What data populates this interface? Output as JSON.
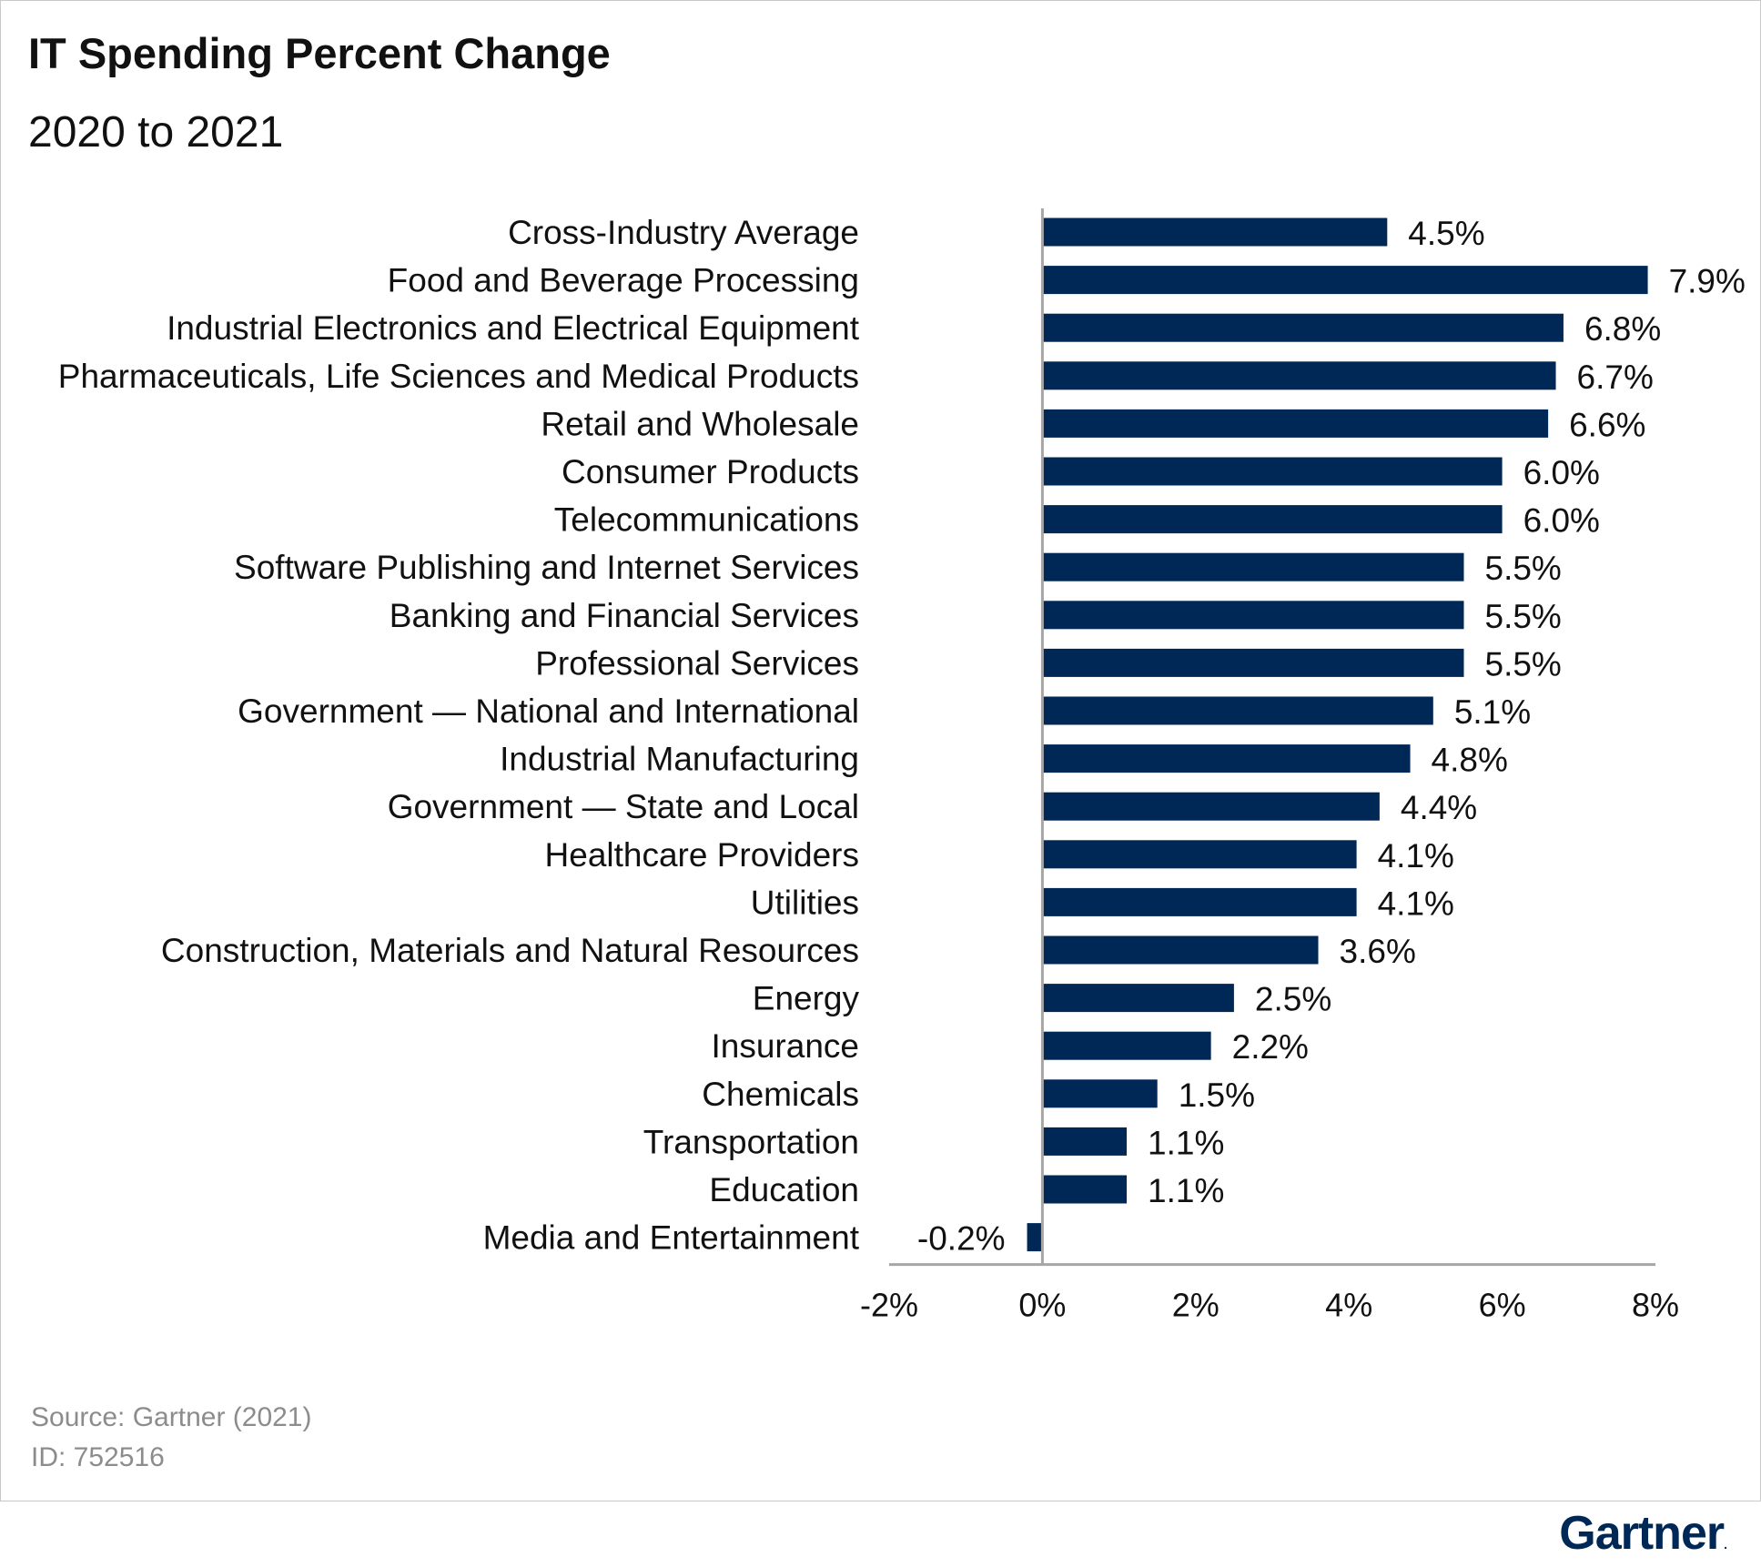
{
  "chart_data": {
    "type": "bar",
    "orientation": "horizontal",
    "title": "IT Spending Percent Change",
    "subtitle": "2020 to 2021",
    "categories": [
      "Cross-Industry Average",
      "Food and Beverage Processing",
      "Industrial Electronics and Electrical Equipment",
      "Pharmaceuticals, Life Sciences and Medical Products",
      "Retail and Wholesale",
      "Consumer Products",
      "Telecommunications",
      "Software Publishing and Internet Services",
      "Banking and Financial Services",
      "Professional Services",
      "Government — National and International",
      "Industrial Manufacturing",
      "Government — State and Local",
      "Healthcare Providers",
      "Utilities",
      "Construction, Materials and Natural Resources",
      "Energy",
      "Insurance",
      "Chemicals",
      "Transportation",
      "Education",
      "Media and Entertainment"
    ],
    "values": [
      4.5,
      7.9,
      6.8,
      6.7,
      6.6,
      6.0,
      6.0,
      5.5,
      5.5,
      5.5,
      5.1,
      4.8,
      4.4,
      4.1,
      4.1,
      3.6,
      2.5,
      2.2,
      1.5,
      1.1,
      1.1,
      -0.2
    ],
    "value_labels": [
      "4.5%",
      "7.9%",
      "6.8%",
      "6.7%",
      "6.6%",
      "6.0%",
      "6.0%",
      "5.5%",
      "5.5%",
      "5.5%",
      "5.1%",
      "4.8%",
      "4.4%",
      "4.1%",
      "4.1%",
      "3.6%",
      "2.5%",
      "2.2%",
      "1.5%",
      "1.1%",
      "1.1%",
      "-0.2%"
    ],
    "xlim": [
      -2,
      8
    ],
    "xticks": [
      -2,
      0,
      2,
      4,
      6,
      8
    ],
    "xtick_labels": [
      "-2%",
      "0%",
      "2%",
      "4%",
      "6%",
      "8%"
    ],
    "xlabel": "",
    "ylabel": "",
    "grid": false,
    "legend": "none",
    "bar_color": "#002856"
  },
  "footer": {
    "source": "Source: Gartner (2021)",
    "id": "ID: 752516"
  },
  "brand": {
    "name": "Gartner",
    "mark": ".",
    "color": "#002856"
  },
  "colors": {
    "text_muted": "#8c8c8c",
    "axis": "#a6a6a6"
  }
}
